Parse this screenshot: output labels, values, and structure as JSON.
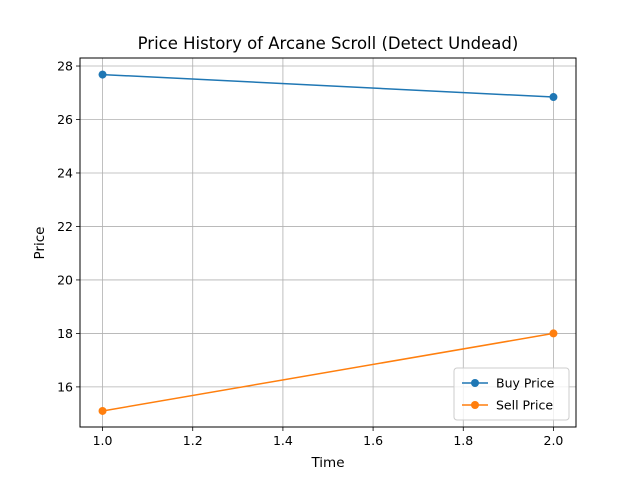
{
  "chart_data": {
    "type": "line",
    "title": "Price History of Arcane Scroll (Detect Undead)",
    "xlabel": "Time",
    "ylabel": "Price",
    "x": [
      1.0,
      2.0
    ],
    "xlim": [
      0.95,
      2.05
    ],
    "ylim": [
      14.5,
      28.3
    ],
    "xticks": [
      1.0,
      1.2,
      1.4,
      1.6,
      1.8,
      2.0
    ],
    "xtick_labels": [
      "1.0",
      "1.2",
      "1.4",
      "1.6",
      "1.8",
      "2.0"
    ],
    "yticks": [
      16,
      18,
      20,
      22,
      24,
      26,
      28
    ],
    "ytick_labels": [
      "16",
      "18",
      "20",
      "22",
      "24",
      "26",
      "28"
    ],
    "grid": true,
    "legend_position": "lower-right",
    "series": [
      {
        "name": "Buy Price",
        "values": [
          27.68,
          26.84
        ],
        "color": "#1f77b4",
        "marker": "circle"
      },
      {
        "name": "Sell Price",
        "values": [
          15.1,
          18.0
        ],
        "color": "#ff7f0e",
        "marker": "circle"
      }
    ]
  }
}
